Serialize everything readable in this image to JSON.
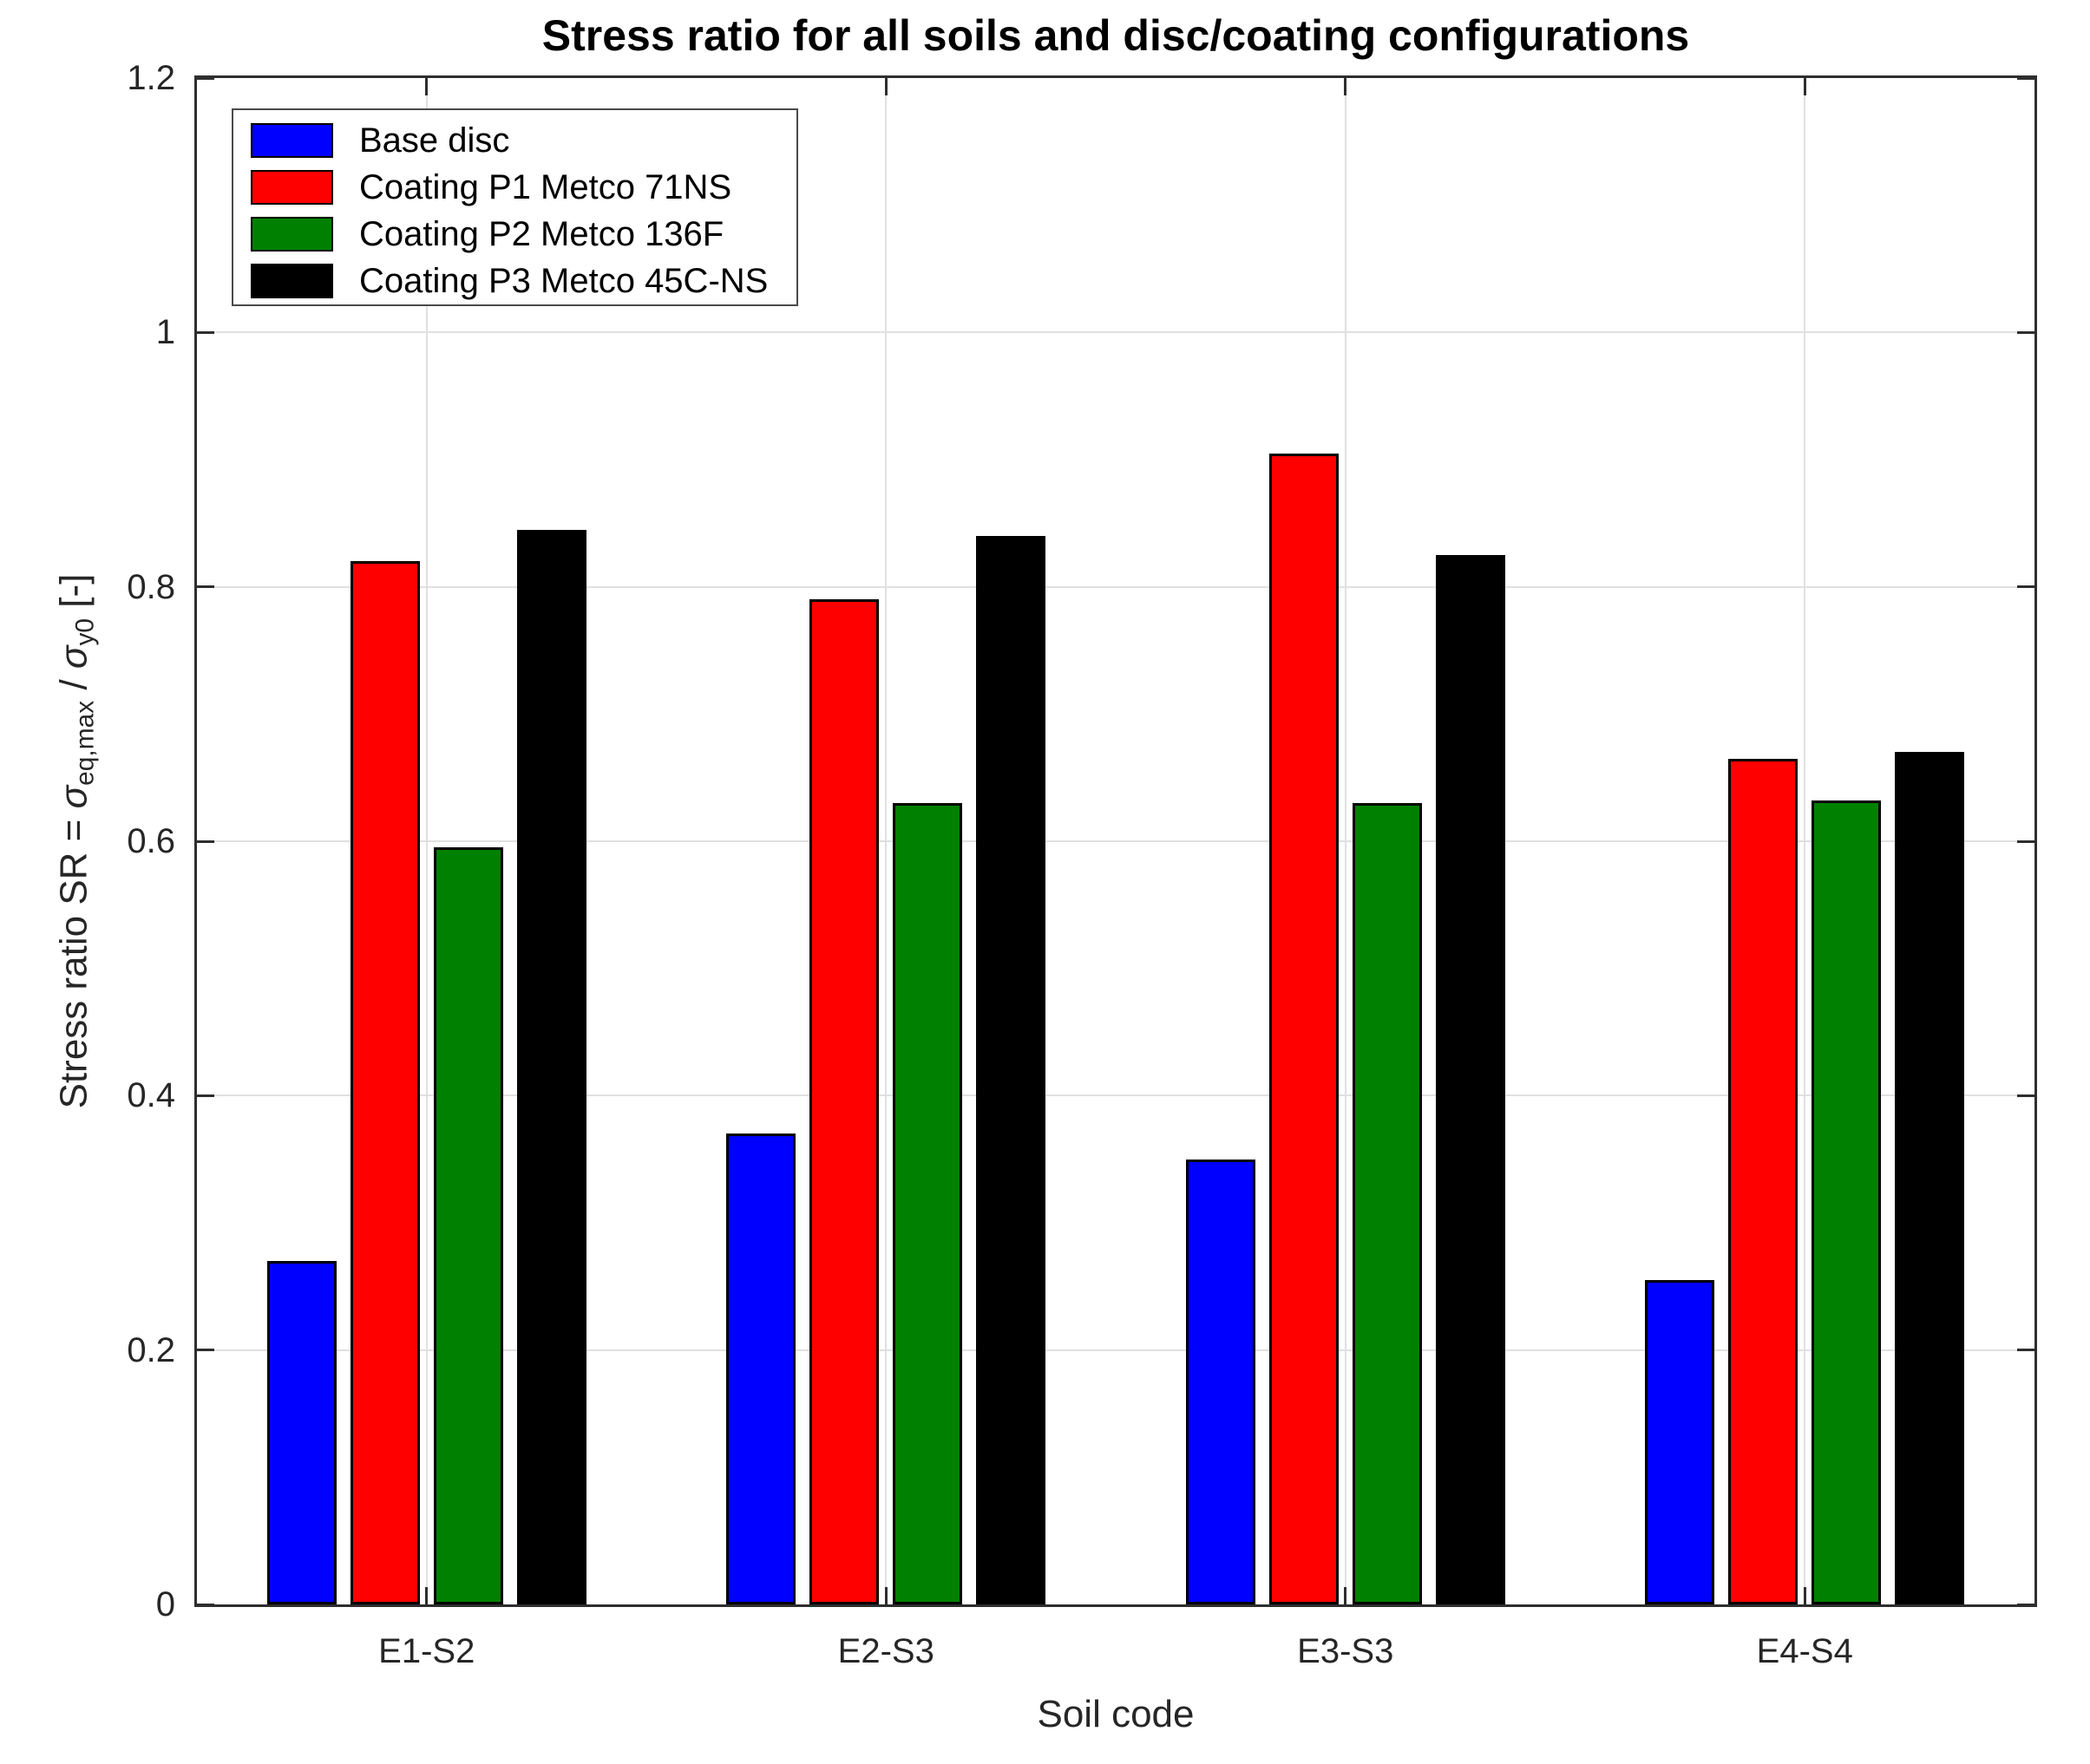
{
  "chart_data": {
    "type": "bar",
    "title": "Stress ratio for all soils and disc/coating configurations",
    "xlabel": "Soil code",
    "ylabel_parts": {
      "prefix": "Stress ratio SR = ",
      "sigma1": "σ",
      "sub1": "eq,max",
      "mid": " / ",
      "sigma2": "σ",
      "sub2": "y0",
      "suffix": " [-]"
    },
    "categories": [
      "E1-S2",
      "E2-S3",
      "E3-S3",
      "E4-S4"
    ],
    "series": [
      {
        "name": "Base disc",
        "color": "#0000ff",
        "values": [
          0.27,
          0.37,
          0.35,
          0.255
        ]
      },
      {
        "name": "Coating P1 Metco 71NS",
        "color": "#ff0000",
        "values": [
          0.82,
          0.79,
          0.905,
          0.665
        ]
      },
      {
        "name": "Coating P2 Metco 136F",
        "color": "#008000",
        "values": [
          0.595,
          0.63,
          0.63,
          0.632
        ]
      },
      {
        "name": "Coating P3 Metco 45C-NS",
        "color": "#000000",
        "values": [
          0.845,
          0.84,
          0.825,
          0.67
        ]
      }
    ],
    "ylim": [
      0,
      1.2
    ],
    "yticks": [
      "0",
      "0.2",
      "0.4",
      "0.6",
      "0.8",
      "1",
      "1.2"
    ],
    "grid": true,
    "legend_position": "top-left",
    "colors": {
      "axis": "#2e2e2e",
      "grid": "#e0e0e0",
      "bar_edge": "#000000",
      "background": "#ffffff"
    }
  }
}
